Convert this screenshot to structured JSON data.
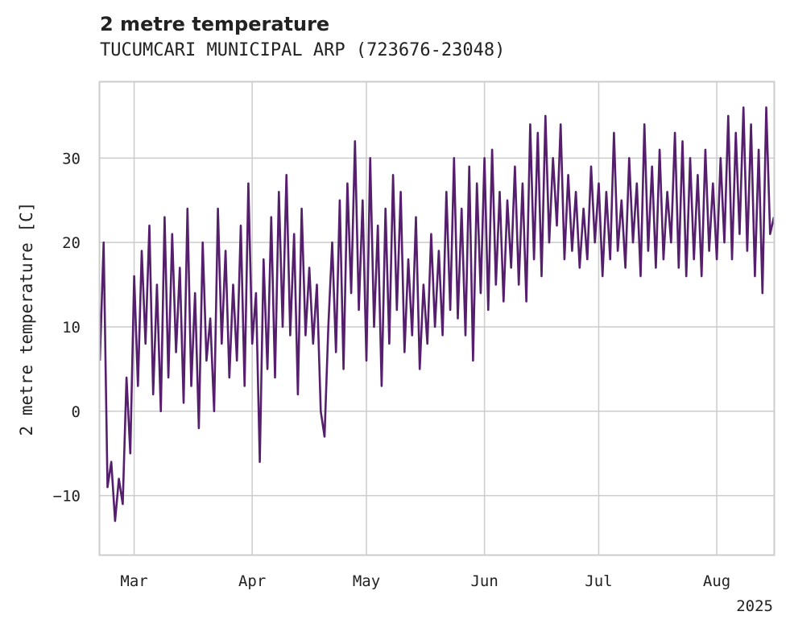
{
  "chart_data": {
    "type": "line",
    "title": "2 metre temperature",
    "subtitle": "TUCUMCARI MUNICIPAL ARP (723676-23048)",
    "xlabel": "",
    "ylabel": "2 metre temperature [C]",
    "x_range": [
      "2025-02-20",
      "2025-08-16"
    ],
    "ylim": [
      -17,
      39
    ],
    "y_ticks": [
      -10,
      0,
      10,
      20,
      30
    ],
    "x_ticks": [
      {
        "date": "2025-03-01",
        "label": "Mar"
      },
      {
        "date": "2025-04-01",
        "label": "Apr"
      },
      {
        "date": "2025-05-01",
        "label": "May"
      },
      {
        "date": "2025-06-01",
        "label": "Jun"
      },
      {
        "date": "2025-07-01",
        "label": "Jul"
      },
      {
        "date": "2025-08-01",
        "label": "Aug"
      }
    ],
    "x_offset_label": "2025",
    "grid": true,
    "line_color": "#561f6e",
    "series": [
      {
        "name": "",
        "points": [
          [
            "2025-02-20",
            6
          ],
          [
            "2025-02-21",
            20
          ],
          [
            "2025-02-22",
            -9
          ],
          [
            "2025-02-23",
            -6
          ],
          [
            "2025-02-24",
            -13
          ],
          [
            "2025-02-25",
            -8
          ],
          [
            "2025-02-26",
            -11
          ],
          [
            "2025-02-27",
            4
          ],
          [
            "2025-02-28",
            -5
          ],
          [
            "2025-03-01",
            16
          ],
          [
            "2025-03-02",
            3
          ],
          [
            "2025-03-03",
            19
          ],
          [
            "2025-03-04",
            8
          ],
          [
            "2025-03-05",
            22
          ],
          [
            "2025-03-06",
            2
          ],
          [
            "2025-03-07",
            15
          ],
          [
            "2025-03-08",
            0
          ],
          [
            "2025-03-09",
            23
          ],
          [
            "2025-03-10",
            4
          ],
          [
            "2025-03-11",
            21
          ],
          [
            "2025-03-12",
            7
          ],
          [
            "2025-03-13",
            17
          ],
          [
            "2025-03-14",
            1
          ],
          [
            "2025-03-15",
            24
          ],
          [
            "2025-03-16",
            3
          ],
          [
            "2025-03-17",
            14
          ],
          [
            "2025-03-18",
            -2
          ],
          [
            "2025-03-19",
            20
          ],
          [
            "2025-03-20",
            6
          ],
          [
            "2025-03-21",
            11
          ],
          [
            "2025-03-22",
            0
          ],
          [
            "2025-03-23",
            24
          ],
          [
            "2025-03-24",
            8
          ],
          [
            "2025-03-25",
            19
          ],
          [
            "2025-03-26",
            4
          ],
          [
            "2025-03-27",
            15
          ],
          [
            "2025-03-28",
            6
          ],
          [
            "2025-03-29",
            22
          ],
          [
            "2025-03-30",
            3
          ],
          [
            "2025-03-31",
            27
          ],
          [
            "2025-04-01",
            8
          ],
          [
            "2025-04-02",
            14
          ],
          [
            "2025-04-03",
            -6
          ],
          [
            "2025-04-04",
            18
          ],
          [
            "2025-04-05",
            5
          ],
          [
            "2025-04-06",
            23
          ],
          [
            "2025-04-07",
            4
          ],
          [
            "2025-04-08",
            26
          ],
          [
            "2025-04-09",
            10
          ],
          [
            "2025-04-10",
            28
          ],
          [
            "2025-04-11",
            9
          ],
          [
            "2025-04-12",
            21
          ],
          [
            "2025-04-13",
            2
          ],
          [
            "2025-04-14",
            24
          ],
          [
            "2025-04-15",
            9
          ],
          [
            "2025-04-16",
            17
          ],
          [
            "2025-04-17",
            8
          ],
          [
            "2025-04-18",
            15
          ],
          [
            "2025-04-19",
            0
          ],
          [
            "2025-04-20",
            -3
          ],
          [
            "2025-04-21",
            10
          ],
          [
            "2025-04-22",
            20
          ],
          [
            "2025-04-23",
            7
          ],
          [
            "2025-04-24",
            25
          ],
          [
            "2025-04-25",
            5
          ],
          [
            "2025-04-26",
            27
          ],
          [
            "2025-04-27",
            14
          ],
          [
            "2025-04-28",
            32
          ],
          [
            "2025-04-29",
            12
          ],
          [
            "2025-04-30",
            25
          ],
          [
            "2025-05-01",
            6
          ],
          [
            "2025-05-02",
            30
          ],
          [
            "2025-05-03",
            10
          ],
          [
            "2025-05-04",
            22
          ],
          [
            "2025-05-05",
            3
          ],
          [
            "2025-05-06",
            24
          ],
          [
            "2025-05-07",
            8
          ],
          [
            "2025-05-08",
            28
          ],
          [
            "2025-05-09",
            12
          ],
          [
            "2025-05-10",
            26
          ],
          [
            "2025-05-11",
            7
          ],
          [
            "2025-05-12",
            18
          ],
          [
            "2025-05-13",
            9
          ],
          [
            "2025-05-14",
            23
          ],
          [
            "2025-05-15",
            5
          ],
          [
            "2025-05-16",
            15
          ],
          [
            "2025-05-17",
            8
          ],
          [
            "2025-05-18",
            21
          ],
          [
            "2025-05-19",
            10
          ],
          [
            "2025-05-20",
            19
          ],
          [
            "2025-05-21",
            9
          ],
          [
            "2025-05-22",
            26
          ],
          [
            "2025-05-23",
            12
          ],
          [
            "2025-05-24",
            30
          ],
          [
            "2025-05-25",
            11
          ],
          [
            "2025-05-26",
            24
          ],
          [
            "2025-05-27",
            9
          ],
          [
            "2025-05-28",
            29
          ],
          [
            "2025-05-29",
            6
          ],
          [
            "2025-05-30",
            27
          ],
          [
            "2025-05-31",
            14
          ],
          [
            "2025-06-01",
            30
          ],
          [
            "2025-06-02",
            12
          ],
          [
            "2025-06-03",
            31
          ],
          [
            "2025-06-04",
            15
          ],
          [
            "2025-06-05",
            26
          ],
          [
            "2025-06-06",
            13
          ],
          [
            "2025-06-07",
            25
          ],
          [
            "2025-06-08",
            17
          ],
          [
            "2025-06-09",
            29
          ],
          [
            "2025-06-10",
            15
          ],
          [
            "2025-06-11",
            27
          ],
          [
            "2025-06-12",
            13
          ],
          [
            "2025-06-13",
            34
          ],
          [
            "2025-06-14",
            18
          ],
          [
            "2025-06-15",
            33
          ],
          [
            "2025-06-16",
            16
          ],
          [
            "2025-06-17",
            35
          ],
          [
            "2025-06-18",
            20
          ],
          [
            "2025-06-19",
            30
          ],
          [
            "2025-06-20",
            22
          ],
          [
            "2025-06-21",
            34
          ],
          [
            "2025-06-22",
            18
          ],
          [
            "2025-06-23",
            28
          ],
          [
            "2025-06-24",
            19
          ],
          [
            "2025-06-25",
            26
          ],
          [
            "2025-06-26",
            17
          ],
          [
            "2025-06-27",
            24
          ],
          [
            "2025-06-28",
            18
          ],
          [
            "2025-06-29",
            29
          ],
          [
            "2025-06-30",
            20
          ],
          [
            "2025-07-01",
            27
          ],
          [
            "2025-07-02",
            16
          ],
          [
            "2025-07-03",
            26
          ],
          [
            "2025-07-04",
            18
          ],
          [
            "2025-07-05",
            33
          ],
          [
            "2025-07-06",
            19
          ],
          [
            "2025-07-07",
            25
          ],
          [
            "2025-07-08",
            17
          ],
          [
            "2025-07-09",
            30
          ],
          [
            "2025-07-10",
            20
          ],
          [
            "2025-07-11",
            27
          ],
          [
            "2025-07-12",
            16
          ],
          [
            "2025-07-13",
            34
          ],
          [
            "2025-07-14",
            19
          ],
          [
            "2025-07-15",
            29
          ],
          [
            "2025-07-16",
            17
          ],
          [
            "2025-07-17",
            31
          ],
          [
            "2025-07-18",
            18
          ],
          [
            "2025-07-19",
            26
          ],
          [
            "2025-07-20",
            20
          ],
          [
            "2025-07-21",
            33
          ],
          [
            "2025-07-22",
            17
          ],
          [
            "2025-07-23",
            32
          ],
          [
            "2025-07-24",
            16
          ],
          [
            "2025-07-25",
            30
          ],
          [
            "2025-07-26",
            18
          ],
          [
            "2025-07-27",
            28
          ],
          [
            "2025-07-28",
            16
          ],
          [
            "2025-07-29",
            31
          ],
          [
            "2025-07-30",
            19
          ],
          [
            "2025-07-31",
            27
          ],
          [
            "2025-08-01",
            18
          ],
          [
            "2025-08-02",
            30
          ],
          [
            "2025-08-03",
            20
          ],
          [
            "2025-08-04",
            35
          ],
          [
            "2025-08-05",
            18
          ],
          [
            "2025-08-06",
            33
          ],
          [
            "2025-08-07",
            21
          ],
          [
            "2025-08-08",
            36
          ],
          [
            "2025-08-09",
            19
          ],
          [
            "2025-08-10",
            34
          ],
          [
            "2025-08-11",
            16
          ],
          [
            "2025-08-12",
            31
          ],
          [
            "2025-08-13",
            14
          ],
          [
            "2025-08-14",
            36
          ],
          [
            "2025-08-15",
            21
          ],
          [
            "2025-08-16",
            23
          ]
        ]
      }
    ]
  }
}
